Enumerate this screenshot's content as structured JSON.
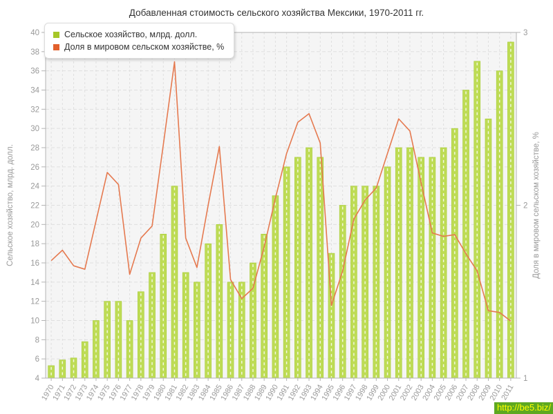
{
  "title": "Добавленная стоимость сельского хозяйства Мексики, 1970-2011 гг.",
  "legend": {
    "items": [
      {
        "label": "Сельское хозяйство, млрд. долл.",
        "color": "#a6c728"
      },
      {
        "label": "Доля в мировом сельском хозяйстве, %",
        "color": "#e2602c"
      }
    ]
  },
  "watermark": {
    "text": "http://be5.biz/"
  },
  "colors": {
    "plot_bg": "#f5f5f5",
    "grid": "#dfdfdf",
    "axis": "#b3b3b3",
    "tick_label": "#999999",
    "title_text": "#333333",
    "bar_dash": "#ffffff",
    "watermark_bg": "#5ea821",
    "watermark_text": "#ffff00"
  },
  "chart_data": {
    "type": "bar",
    "subtype": "bar+line dual axis",
    "title": "Добавленная стоимость сельского хозяйства Мексики, 1970-2011 гг.",
    "categories": [
      1970,
      1971,
      1972,
      1973,
      1974,
      1975,
      1976,
      1977,
      1978,
      1979,
      1980,
      1981,
      1982,
      1983,
      1984,
      1985,
      1986,
      1987,
      1988,
      1989,
      1990,
      1991,
      1992,
      1993,
      1994,
      1995,
      1996,
      1997,
      1998,
      1999,
      2000,
      2001,
      2002,
      2003,
      2004,
      2005,
      2006,
      2007,
      2008,
      2009,
      2010,
      2011
    ],
    "series": [
      {
        "name": "Сельское хозяйство, млрд. долл.",
        "type": "bar",
        "axis": "left",
        "color": "#bedc55",
        "stroke": "#a6ca35",
        "values": [
          5.3,
          5.9,
          6.1,
          7.8,
          10,
          12,
          12,
          10,
          13,
          15,
          19,
          24,
          15,
          14,
          18,
          20,
          14,
          14,
          16,
          19,
          23,
          26,
          27,
          28,
          27,
          17,
          22,
          24,
          24,
          24,
          26,
          28,
          28,
          27,
          27,
          28,
          30,
          34,
          37,
          31,
          36,
          39
        ]
      },
      {
        "name": "Доля в мировом сельском хозяйстве, %",
        "type": "line",
        "axis": "right",
        "color": "#e5794f",
        "values": [
          1.68,
          1.74,
          1.65,
          1.63,
          1.91,
          2.19,
          2.12,
          1.6,
          1.81,
          1.88,
          2.35,
          2.83,
          1.81,
          1.64,
          2.0,
          2.34,
          1.57,
          1.46,
          1.52,
          1.76,
          2.04,
          2.3,
          2.48,
          2.53,
          2.36,
          1.42,
          1.62,
          1.92,
          2.03,
          2.1,
          2.3,
          2.5,
          2.43,
          2.13,
          1.84,
          1.82,
          1.83,
          1.72,
          1.62,
          1.39,
          1.38,
          1.33
        ]
      }
    ],
    "left_axis": {
      "title": "Сельское хозяйство, млрд. долл.",
      "min": 4,
      "max": 40,
      "tick_step": 2
    },
    "right_axis": {
      "title": "Доля в мировом сельском хозяйстве, %",
      "min": 1,
      "max": 3,
      "ticks": [
        1,
        2,
        3
      ]
    },
    "grid": true,
    "legend_position": "top-left",
    "x_label_rotation": -60
  }
}
